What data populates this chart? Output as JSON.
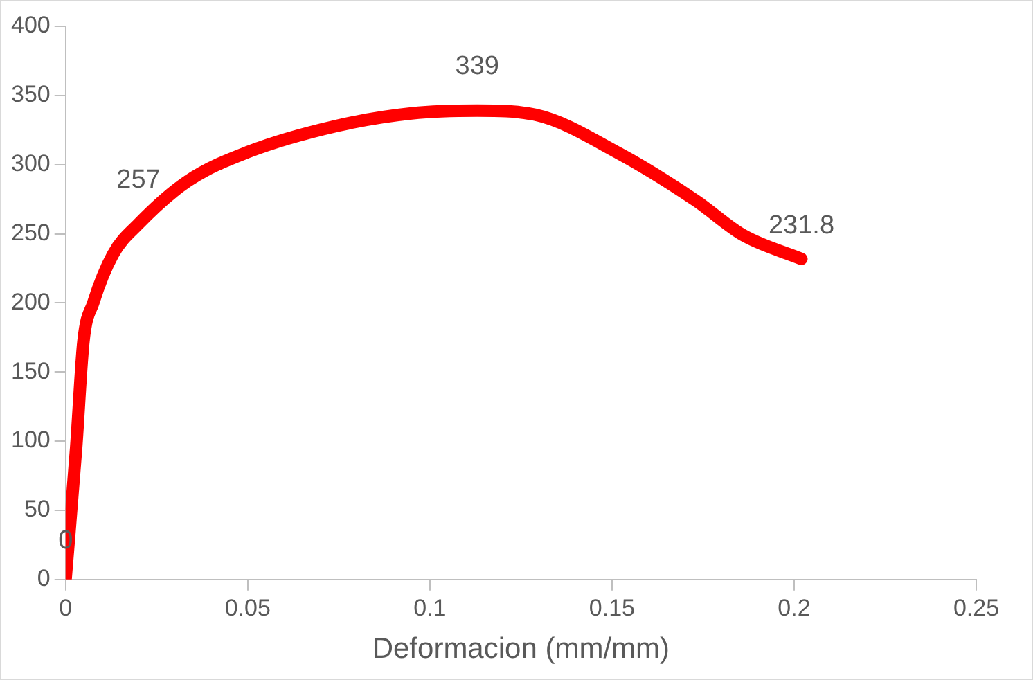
{
  "chart_data": {
    "type": "line",
    "xlabel": "Deformacion (mm/mm)",
    "x": [
      0,
      0.0029,
      0.0049,
      0.0076,
      0.013,
      0.02,
      0.0335,
      0.05,
      0.0745,
      0.095,
      0.113,
      0.129,
      0.152,
      0.173,
      0.186,
      0.202
    ],
    "series": [
      {
        "color": "#ff0000",
        "values": [
          0,
          95,
          172,
          200,
          235,
          257,
          288,
          309,
          328,
          337,
          339,
          336,
          308,
          274,
          249,
          231.8
        ],
        "value_labels": [
          "0",
          null,
          null,
          null,
          null,
          "257",
          null,
          null,
          null,
          null,
          "339",
          null,
          null,
          null,
          null,
          "231.8"
        ]
      }
    ],
    "xlim": [
      0,
      0.25
    ],
    "xticks": [
      0,
      0.05,
      0.1,
      0.15,
      0.2,
      0.25
    ],
    "ylim": [
      0,
      400
    ],
    "yticks": [
      0,
      50,
      100,
      150,
      200,
      250,
      300,
      350,
      400
    ],
    "grid": false,
    "legend": false,
    "marker": "none",
    "line_style": "solid"
  }
}
